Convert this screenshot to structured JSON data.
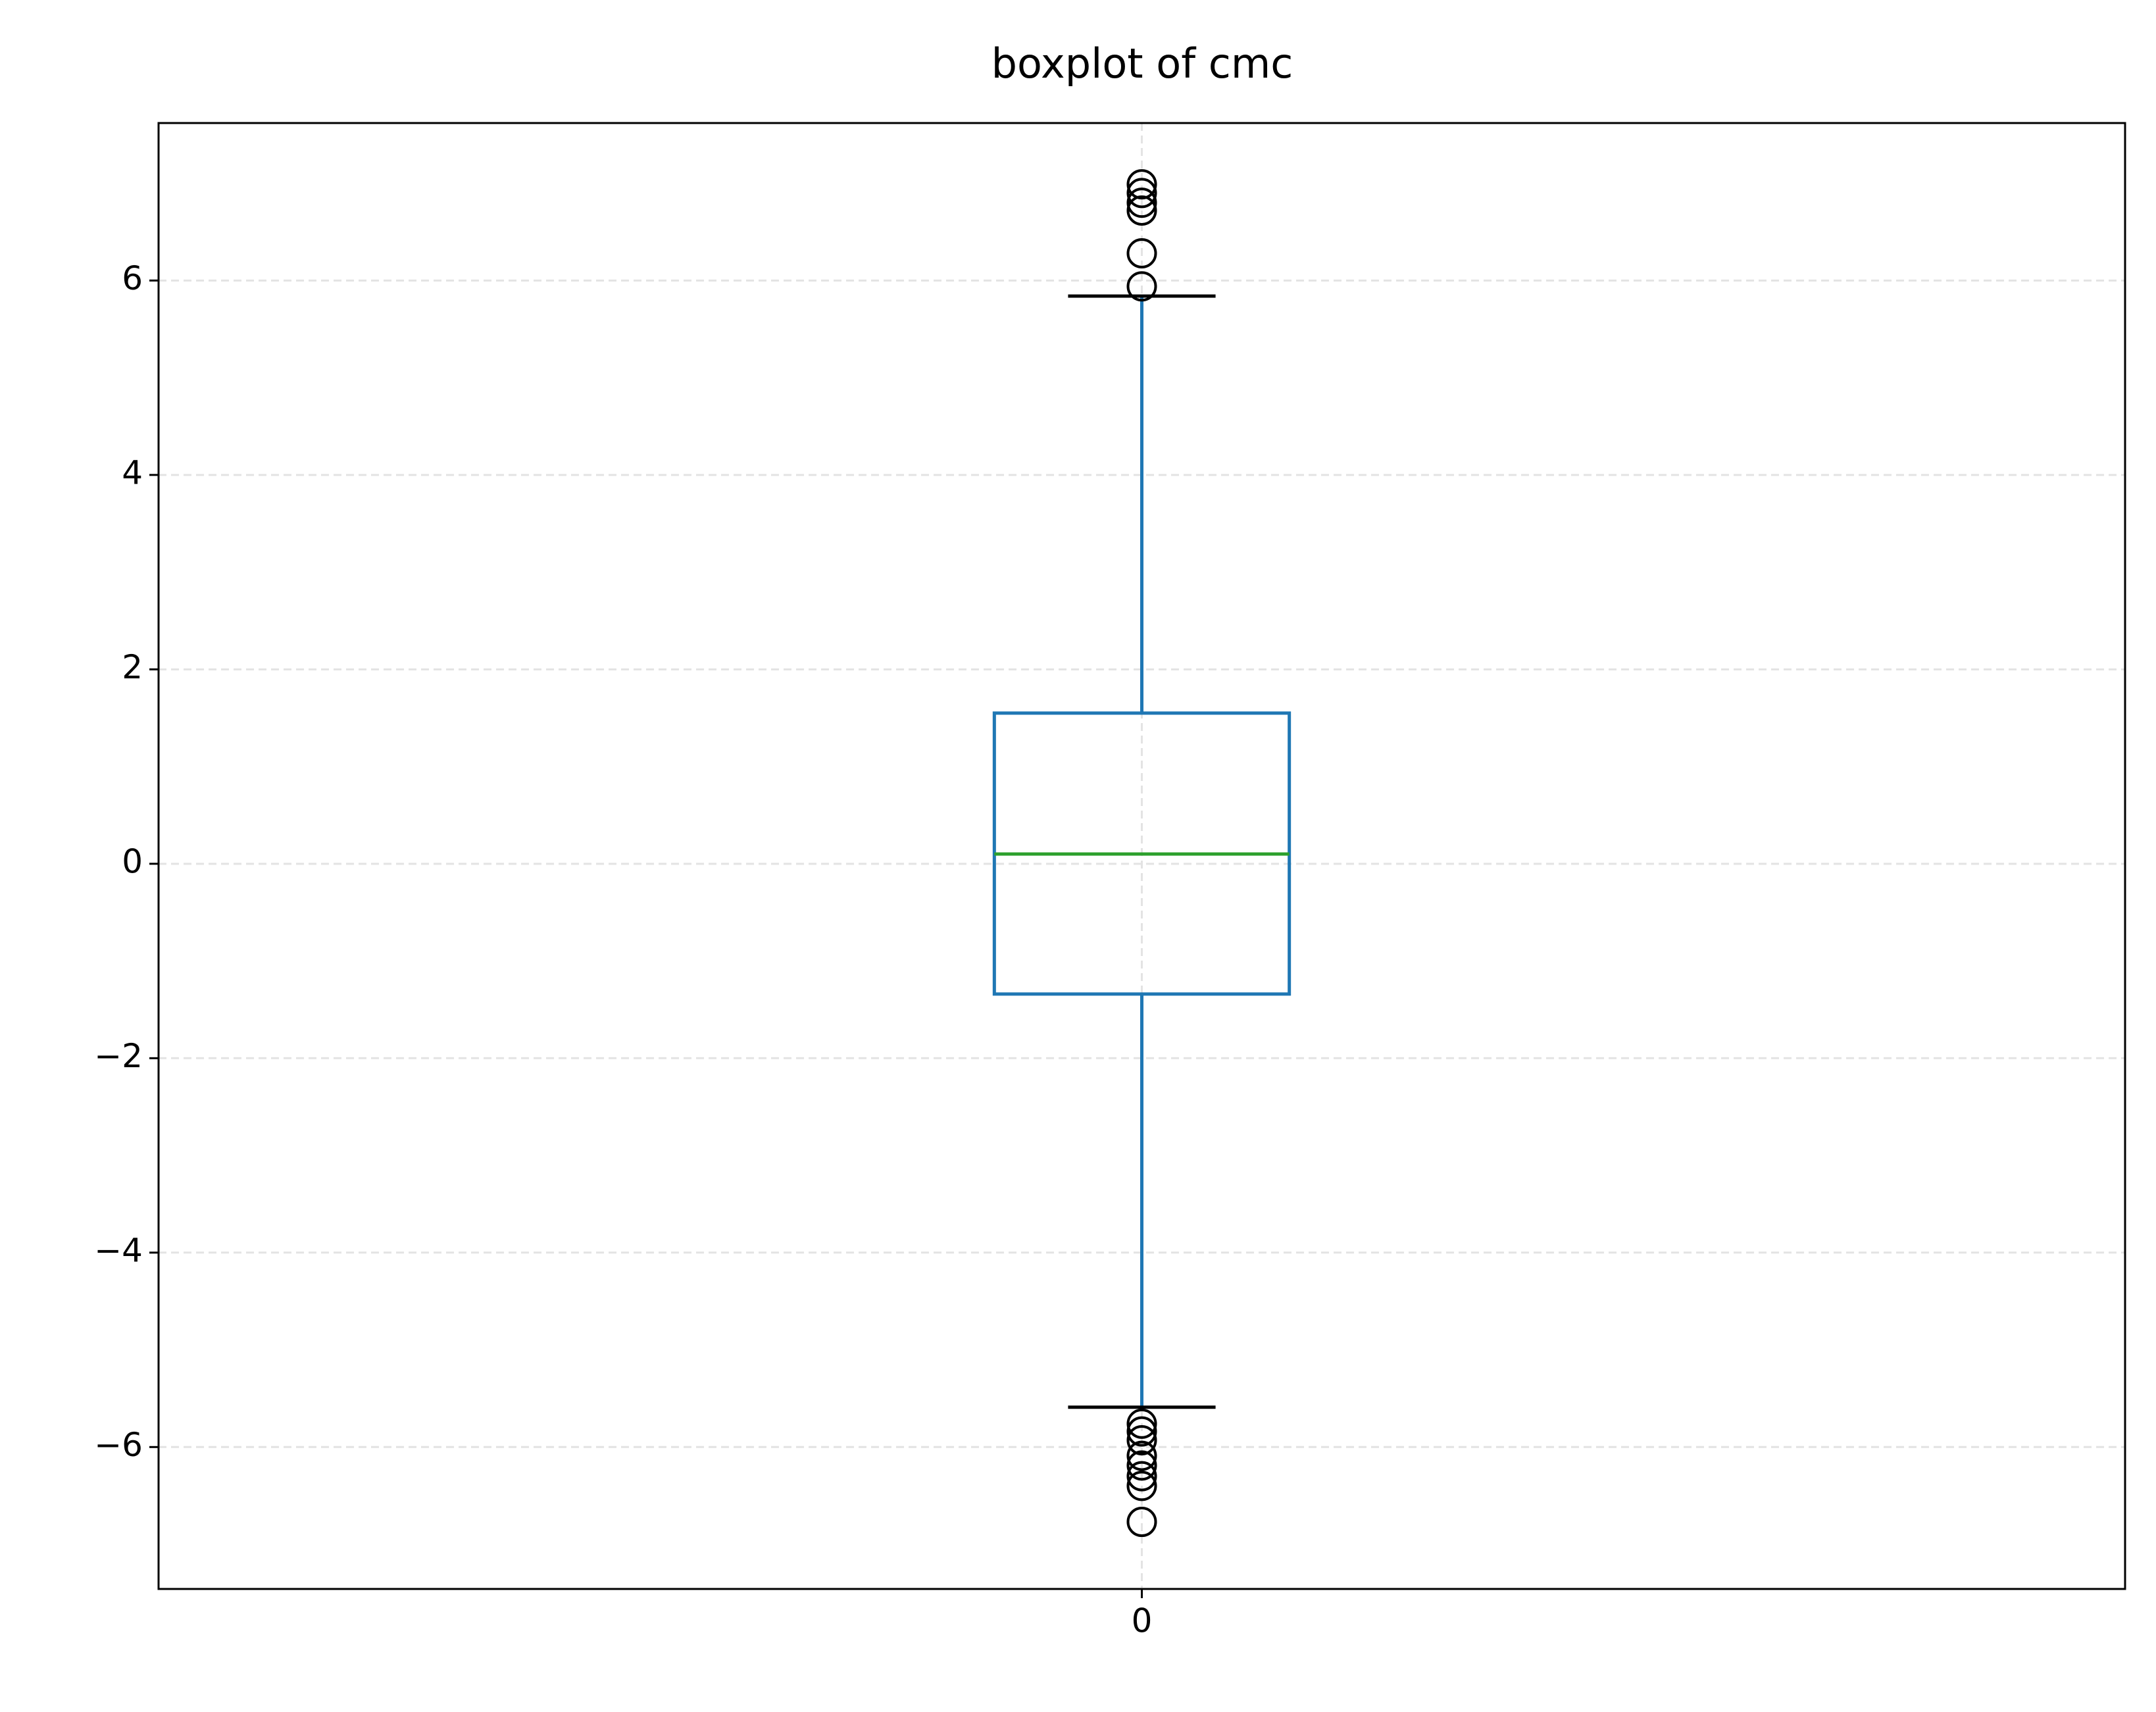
{
  "chart_data": {
    "type": "box",
    "title": "boxplot of cmc",
    "categories": [
      "0"
    ],
    "boxes": [
      {
        "q1": -1.34,
        "median": 0.1,
        "q3": 1.55,
        "whisker_low": -5.59,
        "whisker_high": 5.84,
        "outliers": [
          6.99,
          6.9,
          6.8,
          6.72,
          6.28,
          5.94,
          -5.76,
          -5.84,
          -5.93,
          -6.09,
          -6.19,
          -6.3,
          -6.4,
          -6.77
        ]
      }
    ],
    "box_color": "#1f77b4",
    "median_color": "#2ca02c",
    "cap_color": "#000000",
    "outlier_color": "#000000",
    "ylim": [
      -7.46,
      7.62
    ],
    "yticks": [
      {
        "value": -6,
        "label": "−6"
      },
      {
        "value": -4,
        "label": "−4"
      },
      {
        "value": -2,
        "label": "−2"
      },
      0,
      2,
      4,
      6
    ],
    "grid": true
  }
}
